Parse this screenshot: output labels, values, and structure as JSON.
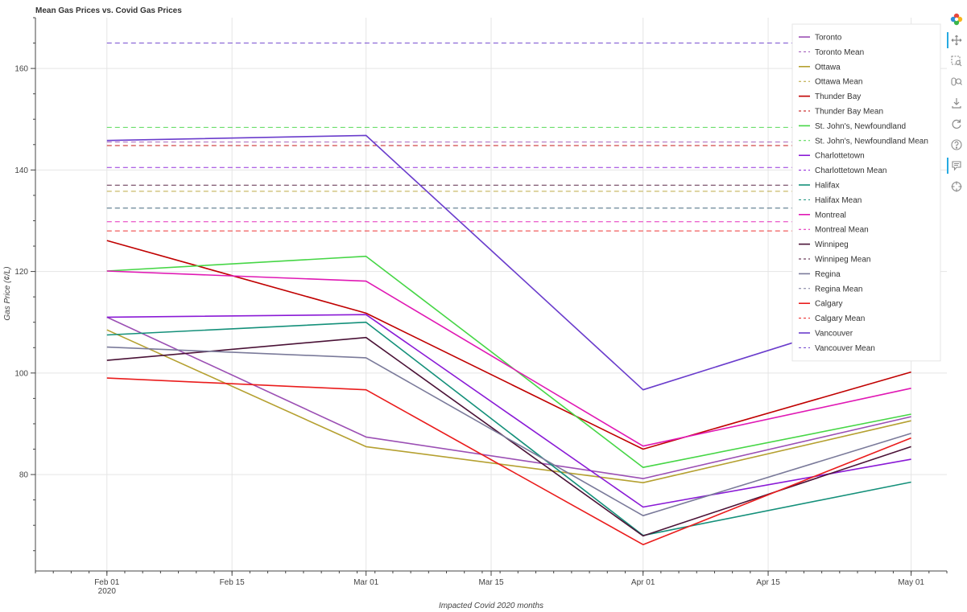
{
  "chart_data": {
    "type": "line",
    "title": "Mean Gas Prices vs. Covid Gas Prices",
    "xlabel": "Impacted Covid 2020 months",
    "ylabel": "Gas Price (¢/L)",
    "x_dates": [
      "2020-02-01",
      "2020-03-01",
      "2020-04-01",
      "2020-05-01"
    ],
    "xlim": [
      "2020-01-24",
      "2020-05-05"
    ],
    "ylim": [
      61,
      170
    ],
    "x_ticks": [
      {
        "date": "2020-02-01",
        "label": "Feb 01",
        "sublabel": "2020"
      },
      {
        "date": "2020-02-15",
        "label": "Feb 15",
        "sublabel": ""
      },
      {
        "date": "2020-03-01",
        "label": "Mar 01",
        "sublabel": ""
      },
      {
        "date": "2020-03-15",
        "label": "Mar 15",
        "sublabel": ""
      },
      {
        "date": "2020-04-01",
        "label": "Apr 01",
        "sublabel": ""
      },
      {
        "date": "2020-04-15",
        "label": "Apr 15",
        "sublabel": ""
      },
      {
        "date": "2020-05-01",
        "label": "May 01",
        "sublabel": ""
      }
    ],
    "y_ticks": [
      80,
      100,
      120,
      140,
      160
    ],
    "grid": true,
    "legend_position": "top-right",
    "series": [
      {
        "name": "Toronto",
        "color": "#9b4fb4",
        "values": [
          111.0,
          87.4,
          79.2,
          91.4
        ],
        "mean": null
      },
      {
        "name": "Toronto Mean",
        "color": "#9b4fb4",
        "dashed": true,
        "mean": 145.5
      },
      {
        "name": "Ottawa",
        "color": "#b5a030",
        "values": [
          108.5,
          85.5,
          78.4,
          90.6
        ]
      },
      {
        "name": "Ottawa Mean",
        "color": "#b5a030",
        "dashed": true,
        "mean": 135.8
      },
      {
        "name": "Thunder Bay",
        "color": "#c00000",
        "values": [
          126.1,
          111.8,
          85.0,
          100.2
        ]
      },
      {
        "name": "Thunder Bay Mean",
        "color": "#c00000",
        "dashed": true,
        "mean": 144.8
      },
      {
        "name": "St. John's, Newfoundland",
        "color": "#46d646",
        "values": [
          120.1,
          123.0,
          81.4,
          91.9
        ]
      },
      {
        "name": "St. John's, Newfoundland Mean",
        "color": "#46d646",
        "dashed": true,
        "mean": 148.4
      },
      {
        "name": "Charlottetown",
        "color": "#8a1ad6",
        "values": [
          111.0,
          111.5,
          73.6,
          83.0
        ]
      },
      {
        "name": "Charlottetown Mean",
        "color": "#8a1ad6",
        "dashed": true,
        "mean": 140.5
      },
      {
        "name": "Halifax",
        "color": "#14907a",
        "values": [
          107.5,
          110.0,
          68.0,
          78.5
        ]
      },
      {
        "name": "Halifax Mean",
        "color": "#14907a",
        "dashed": true,
        "mean": 132.5
      },
      {
        "name": "Montreal",
        "color": "#e018b4",
        "values": [
          120.1,
          118.1,
          85.6,
          97.0
        ]
      },
      {
        "name": "Montreal Mean",
        "color": "#e018b4",
        "dashed": true,
        "mean": 129.8
      },
      {
        "name": "Winnipeg",
        "color": "#4a1236",
        "values": [
          102.5,
          107.0,
          67.9,
          85.5
        ]
      },
      {
        "name": "Winnipeg Mean",
        "color": "#4a1236",
        "dashed": true,
        "mean": 137.0
      },
      {
        "name": "Regina",
        "color": "#7a7a9a",
        "values": [
          105.1,
          103.0,
          71.9,
          88.1
        ]
      },
      {
        "name": "Regina Mean",
        "color": "#7a7a9a",
        "dashed": true,
        "mean": 132.5
      },
      {
        "name": "Calgary",
        "color": "#ea1c1c",
        "values": [
          99.0,
          96.7,
          66.2,
          87.2
        ]
      },
      {
        "name": "Calgary Mean",
        "color": "#ea1c1c",
        "dashed": true,
        "mean": 128.0
      },
      {
        "name": "Vancouver",
        "color": "#6a3ccc",
        "values": [
          145.8,
          146.8,
          96.7,
          113.3
        ]
      },
      {
        "name": "Vancouver Mean",
        "color": "#6a3ccc",
        "dashed": true,
        "mean": 165.0
      }
    ]
  },
  "legend_items": [
    {
      "label": "Toronto",
      "color": "#9b4fb4",
      "dashed": false
    },
    {
      "label": "Toronto Mean",
      "color": "#9b4fb4",
      "dashed": true
    },
    {
      "label": "Ottawa",
      "color": "#b5a030",
      "dashed": false
    },
    {
      "label": "Ottawa Mean",
      "color": "#b5a030",
      "dashed": true
    },
    {
      "label": "Thunder Bay",
      "color": "#c00000",
      "dashed": false
    },
    {
      "label": "Thunder Bay Mean",
      "color": "#c00000",
      "dashed": true
    },
    {
      "label": "St. John's, Newfoundland",
      "color": "#46d646",
      "dashed": false
    },
    {
      "label": "St. John's, Newfoundland Mean",
      "color": "#46d646",
      "dashed": true
    },
    {
      "label": "Charlottetown",
      "color": "#8a1ad6",
      "dashed": false
    },
    {
      "label": "Charlottetown Mean",
      "color": "#8a1ad6",
      "dashed": true
    },
    {
      "label": "Halifax",
      "color": "#14907a",
      "dashed": false
    },
    {
      "label": "Halifax Mean",
      "color": "#14907a",
      "dashed": true
    },
    {
      "label": "Montreal",
      "color": "#e018b4",
      "dashed": false
    },
    {
      "label": "Montreal Mean",
      "color": "#e018b4",
      "dashed": true
    },
    {
      "label": "Winnipeg",
      "color": "#4a1236",
      "dashed": false
    },
    {
      "label": "Winnipeg Mean",
      "color": "#4a1236",
      "dashed": true
    },
    {
      "label": "Regina",
      "color": "#7a7a9a",
      "dashed": false
    },
    {
      "label": "Regina Mean",
      "color": "#7a7a9a",
      "dashed": true
    },
    {
      "label": "Calgary",
      "color": "#ea1c1c",
      "dashed": false
    },
    {
      "label": "Calgary Mean",
      "color": "#ea1c1c",
      "dashed": true
    },
    {
      "label": "Vancouver",
      "color": "#6a3ccc",
      "dashed": false
    },
    {
      "label": "Vancouver Mean",
      "color": "#6a3ccc",
      "dashed": true
    }
  ],
  "toolbar": {
    "items": [
      {
        "icon": "bokeh-logo-icon"
      },
      {
        "icon": "pan-icon"
      },
      {
        "icon": "box-zoom-icon"
      },
      {
        "icon": "wheel-zoom-icon"
      },
      {
        "icon": "save-icon"
      },
      {
        "icon": "reset-icon"
      },
      {
        "icon": "help-icon"
      },
      {
        "icon": "hover-icon"
      },
      {
        "icon": "crosshair-icon"
      }
    ]
  }
}
